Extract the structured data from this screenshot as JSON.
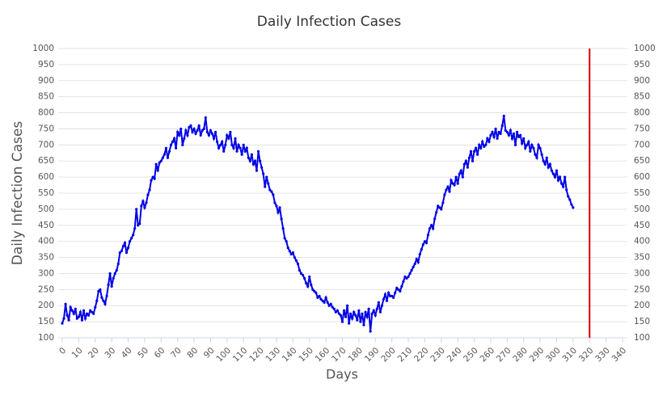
{
  "chart_data": {
    "type": "line",
    "title": "Daily Infection Cases",
    "x_label": "Days",
    "y_label": "Daily Infection Cases",
    "x": [
      0,
      1,
      2,
      3,
      4,
      5,
      6,
      7,
      8,
      9,
      10,
      11,
      12,
      13,
      14,
      15,
      16,
      17,
      18,
      19,
      20,
      21,
      22,
      23,
      24,
      25,
      26,
      27,
      28,
      29,
      30,
      31,
      32,
      33,
      34,
      35,
      36,
      37,
      38,
      39,
      40,
      41,
      42,
      43,
      44,
      45,
      46,
      47,
      48,
      49,
      50,
      51,
      52,
      53,
      54,
      55,
      56,
      57,
      58,
      59,
      60,
      61,
      62,
      63,
      64,
      65,
      66,
      67,
      68,
      69,
      70,
      71,
      72,
      73,
      74,
      75,
      76,
      77,
      78,
      79,
      80,
      81,
      82,
      83,
      84,
      85,
      86,
      87,
      88,
      89,
      90,
      91,
      92,
      93,
      94,
      95,
      96,
      97,
      98,
      99,
      100,
      101,
      102,
      103,
      104,
      105,
      106,
      107,
      108,
      109,
      110,
      111,
      112,
      113,
      114,
      115,
      116,
      117,
      118,
      119,
      120,
      121,
      122,
      123,
      124,
      125,
      126,
      127,
      128,
      129,
      130,
      131,
      132,
      133,
      134,
      135,
      136,
      137,
      138,
      139,
      140,
      141,
      142,
      143,
      144,
      145,
      146,
      147,
      148,
      149,
      150,
      151,
      152,
      153,
      154,
      155,
      156,
      157,
      158,
      159,
      160,
      161,
      162,
      163,
      164,
      165,
      166,
      167,
      168,
      169,
      170,
      171,
      172,
      173,
      174,
      175,
      176,
      177,
      178,
      179,
      180,
      181,
      182,
      183,
      184,
      185,
      186,
      187,
      188,
      189,
      190,
      191,
      192,
      193,
      194,
      195,
      196,
      197,
      198,
      199,
      200,
      201,
      202,
      203,
      204,
      205,
      206,
      207,
      208,
      209,
      210,
      211,
      212,
      213,
      214,
      215,
      216,
      217,
      218,
      219,
      220,
      221,
      222,
      223,
      224,
      225,
      226,
      227,
      228,
      229,
      230,
      231,
      232,
      233,
      234,
      235,
      236,
      237,
      238,
      239,
      240,
      241,
      242,
      243,
      244,
      245,
      246,
      247,
      248,
      249,
      250,
      251,
      252,
      253,
      254,
      255,
      256,
      257,
      258,
      259,
      260,
      261,
      262,
      263,
      264,
      265,
      266,
      267,
      268,
      269,
      270,
      271,
      272,
      273,
      274,
      275,
      276,
      277,
      278,
      279,
      280,
      281,
      282,
      283,
      284,
      285,
      286,
      287,
      288,
      289,
      290,
      291,
      292,
      293,
      294,
      295,
      296,
      297,
      298,
      299,
      300,
      301,
      302,
      303,
      304,
      305,
      306,
      307,
      308,
      309,
      310
    ],
    "series": [
      {
        "name": "Daily Infection Cases",
        "color": "#0000e6",
        "values": [
          145,
          160,
          205,
          170,
          155,
          195,
          185,
          175,
          190,
          160,
          165,
          180,
          155,
          185,
          160,
          175,
          170,
          185,
          180,
          175,
          195,
          215,
          245,
          250,
          225,
          215,
          205,
          230,
          265,
          300,
          260,
          285,
          300,
          310,
          330,
          365,
          370,
          385,
          395,
          365,
          380,
          400,
          410,
          420,
          440,
          500,
          450,
          455,
          510,
          525,
          505,
          520,
          545,
          560,
          590,
          600,
          595,
          640,
          620,
          645,
          650,
          660,
          670,
          690,
          660,
          680,
          700,
          710,
          720,
          690,
          740,
          730,
          750,
          700,
          720,
          745,
          730,
          755,
          760,
          740,
          750,
          735,
          745,
          760,
          730,
          745,
          750,
          785,
          740,
          730,
          745,
          735,
          720,
          740,
          710,
          690,
          700,
          710,
          680,
          700,
          730,
          720,
          740,
          700,
          690,
          720,
          680,
          700,
          690,
          670,
          700,
          680,
          690,
          660,
          650,
          670,
          640,
          650,
          620,
          680,
          650,
          630,
          610,
          570,
          600,
          580,
          560,
          555,
          545,
          520,
          510,
          490,
          505,
          470,
          440,
          410,
          400,
          380,
          370,
          360,
          365,
          350,
          340,
          330,
          310,
          300,
          295,
          285,
          270,
          260,
          290,
          265,
          250,
          245,
          240,
          225,
          230,
          220,
          215,
          210,
          225,
          210,
          200,
          205,
          195,
          190,
          180,
          185,
          175,
          170,
          150,
          185,
          165,
          200,
          145,
          175,
          160,
          180,
          170,
          155,
          185,
          150,
          175,
          140,
          180,
          165,
          190,
          120,
          175,
          185,
          170,
          190,
          210,
          180,
          200,
          220,
          235,
          215,
          240,
          230,
          230,
          225,
          240,
          255,
          250,
          245,
          260,
          275,
          290,
          285,
          290,
          300,
          310,
          320,
          330,
          345,
          335,
          360,
          375,
          390,
          400,
          395,
          420,
          440,
          450,
          440,
          470,
          490,
          510,
          505,
          500,
          520,
          545,
          560,
          570,
          555,
          590,
          580,
          575,
          600,
          580,
          610,
          620,
          600,
          640,
          650,
          630,
          660,
          680,
          650,
          680,
          690,
          670,
          700,
          690,
          710,
          695,
          700,
          720,
          710,
          730,
          740,
          725,
          750,
          720,
          740,
          735,
          760,
          790,
          745,
          740,
          730,
          745,
          720,
          735,
          700,
          740,
          725,
          730,
          705,
          720,
          690,
          700,
          710,
          680,
          700,
          690,
          670,
          660,
          700,
          690,
          670,
          650,
          640,
          660,
          630,
          640,
          620,
          610,
          600,
          620,
          590,
          600,
          580,
          570,
          600,
          560,
          540,
          530,
          515,
          505
        ]
      }
    ],
    "xlim": [
      0,
      340
    ],
    "xticks": [
      0,
      10,
      20,
      30,
      40,
      50,
      60,
      70,
      80,
      90,
      100,
      110,
      120,
      130,
      140,
      150,
      160,
      170,
      180,
      190,
      200,
      210,
      220,
      230,
      240,
      250,
      260,
      270,
      280,
      290,
      300,
      310,
      320,
      330,
      340
    ],
    "ylim": [
      100,
      1000
    ],
    "yticks": [
      100,
      150,
      200,
      250,
      300,
      350,
      400,
      450,
      500,
      550,
      600,
      650,
      700,
      750,
      800,
      850,
      900,
      950,
      1000
    ],
    "y2lim": [
      100,
      1000
    ],
    "y2ticks": [
      100,
      150,
      200,
      250,
      300,
      350,
      400,
      450,
      500,
      550,
      600,
      650,
      700,
      750,
      800,
      850,
      900,
      950,
      1000
    ],
    "vline": {
      "x": 320,
      "color": "#e00000"
    },
    "grid": true
  }
}
